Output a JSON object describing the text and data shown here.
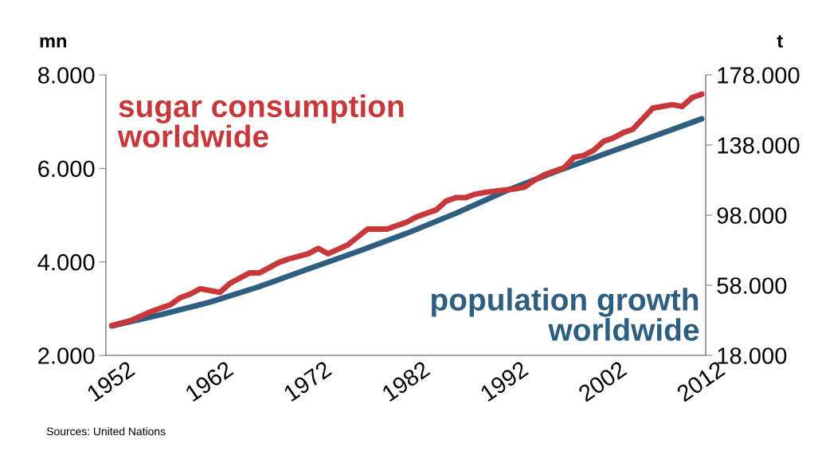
{
  "chart_data": {
    "type": "line",
    "ylabel": "mn",
    "y2label": "t",
    "xlim": [
      1951.4,
      2012.4
    ],
    "xticks": [
      1952,
      1962,
      1972,
      1982,
      1992,
      2002,
      2012
    ],
    "ylim": [
      2000,
      8000
    ],
    "yticks": [
      {
        "value": 2000,
        "label": "2.000"
      },
      {
        "value": 4000,
        "label": "4.000"
      },
      {
        "value": 6000,
        "label": "6.000"
      },
      {
        "value": 8000,
        "label": "8.000"
      }
    ],
    "y2lim": [
      18000,
      178000
    ],
    "y2ticks": [
      {
        "value": 18000,
        "label": "18.000"
      },
      {
        "value": 58000,
        "label": "58.000"
      },
      {
        "value": 98000,
        "label": "98.000"
      },
      {
        "value": 138000,
        "label": "138.000"
      },
      {
        "value": 178000,
        "label": "178.000"
      }
    ],
    "grid": false,
    "legend": false,
    "marker": "none",
    "line_style": "solid",
    "series": [
      {
        "name": "population growth\nworldwide",
        "color": "#2e5f80",
        "x": [
          1952,
          1957,
          1962,
          1967,
          1972,
          1977,
          1982,
          1987,
          1992,
          1997,
          2002,
          2007,
          2012
        ],
        "values": [
          2630,
          2870,
          3140,
          3470,
          3850,
          4220,
          4610,
          5040,
          5510,
          5920,
          6300,
          6680,
          7060
        ]
      },
      {
        "name": "sugar consumption\nworldwide",
        "color": "#c8373a",
        "axis": "y2",
        "x": [
          1952,
          1954,
          1956,
          1958,
          1959,
          1960,
          1961,
          1963,
          1964,
          1966,
          1967,
          1969,
          1970,
          1972,
          1973,
          1974,
          1976,
          1978,
          1980,
          1982,
          1983,
          1984,
          1985,
          1986,
          1987,
          1988,
          1989,
          1990,
          1993,
          1994,
          1995,
          1996,
          1998,
          1999,
          2000,
          2001,
          2002,
          2003,
          2004,
          2005,
          2007,
          2009,
          2010,
          2011,
          2012
        ],
        "values": [
          35000,
          38000,
          43000,
          47000,
          51000,
          53000,
          56000,
          54000,
          59000,
          65000,
          65000,
          71000,
          73000,
          76000,
          79000,
          76000,
          81000,
          90000,
          90000,
          94000,
          97000,
          99000,
          101000,
          106000,
          108000,
          108000,
          110000,
          111000,
          113000,
          114000,
          118000,
          121000,
          125000,
          131000,
          132000,
          135000,
          140000,
          142000,
          145000,
          147000,
          159000,
          161000,
          160000,
          165000,
          167000
        ]
      }
    ],
    "annotations": [
      "Sources: United Nations"
    ]
  }
}
